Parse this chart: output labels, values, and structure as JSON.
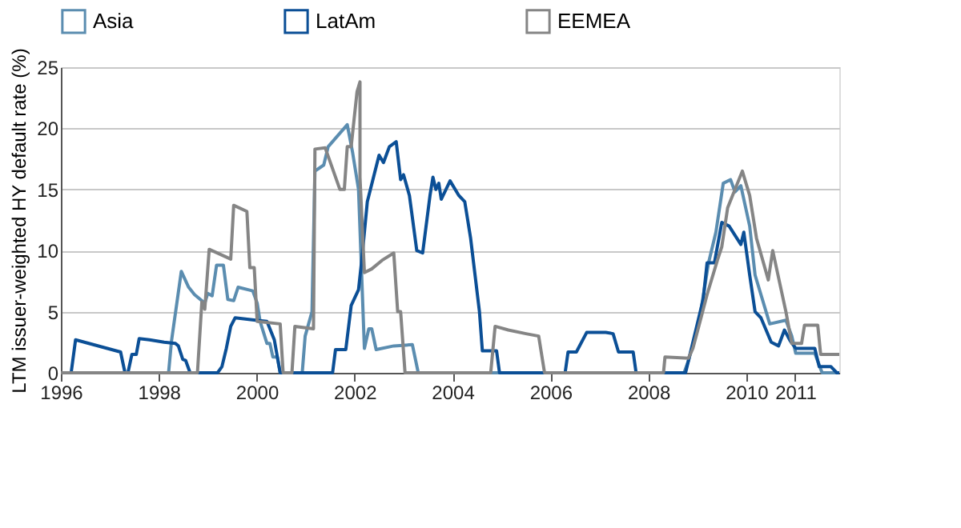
{
  "chart_data": {
    "type": "line",
    "ylabel": "LTM issuer-weighted HY default rate (%)",
    "xlim": [
      1996,
      2011.9
    ],
    "xticks": [
      1996,
      1998,
      2000,
      2002,
      2004,
      2006,
      2008,
      2010,
      2011
    ],
    "ylim": [
      0,
      25
    ],
    "yticks": [
      0,
      5,
      10,
      15,
      20,
      25
    ],
    "grid": "y",
    "legend": "top",
    "marker": "none",
    "line_style": "solid",
    "series": [
      {
        "name": "Asia",
        "color": "#5b8db0",
        "x": [
          1996,
          1998.2,
          1998.26,
          1998.46,
          1998.61,
          1998.73,
          1998.94,
          1999.0,
          1999.09,
          1999.18,
          1999.32,
          1999.41,
          1999.53,
          1999.62,
          1999.92,
          2000.01,
          2000.07,
          2000.21,
          2000.27,
          2000.33,
          2000.42,
          2000.48,
          2000.93,
          2000.99,
          2001.13,
          2001.19,
          2001.37,
          2001.46,
          2001.85,
          2001.96,
          2002.08,
          2002.2,
          2002.29,
          2002.35,
          2002.44,
          2002.8,
          2003.18,
          2003.3,
          2008.73,
          2008.82,
          2009.03,
          2009.23,
          2009.38,
          2009.53,
          2009.68,
          2009.77,
          2009.89,
          2010.07,
          2010.18,
          2010.48,
          2010.81,
          2010.93,
          2011.01,
          2011.4,
          2011.55,
          2011.9
        ],
        "values": [
          0,
          0,
          2.6,
          8.3,
          7,
          6.4,
          5.7,
          6.5,
          6.3,
          8.8,
          8.8,
          6,
          5.9,
          7,
          6.7,
          5.7,
          4.2,
          2.4,
          2.4,
          1.3,
          1.3,
          0,
          0,
          3,
          5,
          16.5,
          17,
          18.5,
          20.3,
          18,
          15,
          2,
          3.6,
          3.6,
          1.9,
          2.2,
          2.3,
          0,
          0,
          1,
          4,
          9,
          11.5,
          15.5,
          15.8,
          14.8,
          15.3,
          12,
          8,
          4,
          4.3,
          3,
          1.6,
          1.6,
          0,
          0
        ]
      },
      {
        "name": "LatAm",
        "color": "#0b4f96",
        "x": [
          1996,
          1996.21,
          1996.3,
          1997.22,
          1997.31,
          1997.37,
          1997.45,
          1997.54,
          1997.6,
          1997.81,
          1998.11,
          1998.34,
          1998.4,
          1998.49,
          1998.55,
          1998.64,
          1999.2,
          1999.29,
          1999.38,
          1999.47,
          1999.56,
          1999.98,
          2000.21,
          2000.36,
          2000.48,
          2001.55,
          2001.61,
          2001.82,
          2001.93,
          2002.08,
          2002.14,
          2002.26,
          2002.5,
          2002.59,
          2002.71,
          2002.85,
          2002.94,
          2003.0,
          2003.12,
          2003.27,
          2003.39,
          2003.54,
          2003.6,
          2003.66,
          2003.72,
          2003.77,
          2003.95,
          2004.13,
          2004.25,
          2004.37,
          2004.55,
          2004.61,
          2004.9,
          2004.96,
          2006.3,
          2006.36,
          2006.53,
          2006.74,
          2007.13,
          2007.28,
          2007.39,
          2007.69,
          2007.75,
          2008.76,
          2008.88,
          2009.12,
          2009.2,
          2009.35,
          2009.5,
          2009.65,
          2009.89,
          2009.95,
          2010.07,
          2010.18,
          2010.3,
          2010.51,
          2010.66,
          2010.78,
          2010.9,
          2011.01,
          2011.4,
          2011.49,
          2011.73,
          2011.85,
          2011.9
        ],
        "values": [
          0,
          0,
          2.7,
          1.7,
          0,
          0,
          1.5,
          1.5,
          2.8,
          2.7,
          2.5,
          2.4,
          2.2,
          1.1,
          1,
          0,
          0,
          0.5,
          2,
          3.8,
          4.5,
          4.3,
          4.2,
          2.7,
          0,
          0,
          1.9,
          1.9,
          5.5,
          6.8,
          9,
          14,
          17.8,
          17.2,
          18.5,
          18.9,
          15.8,
          16.2,
          14.5,
          10,
          9.8,
          14.5,
          16,
          15,
          15.5,
          14.2,
          15.7,
          14.5,
          14,
          11,
          5,
          1.8,
          1.8,
          0,
          0,
          1.7,
          1.7,
          3.3,
          3.3,
          3.2,
          1.7,
          1.7,
          0,
          0,
          2,
          6,
          9,
          9,
          12.3,
          12,
          10.5,
          11.5,
          8,
          5,
          4.5,
          2.5,
          2.2,
          3.5,
          2.6,
          2,
          2,
          0.5,
          0.5,
          0,
          0
        ]
      },
      {
        "name": "EEMEA",
        "color": "#858585",
        "x": [
          1996,
          1998.79,
          1998.88,
          1998.94,
          1999.03,
          1999.47,
          1999.53,
          1999.8,
          1999.86,
          1999.95,
          2000.01,
          2000.48,
          2000.54,
          2000.72,
          2000.78,
          2001.16,
          2001.19,
          2001.4,
          2001.7,
          2001.79,
          2001.85,
          2001.93,
          2002.05,
          2002.11,
          2002.11,
          2002.2,
          2002.35,
          2002.56,
          2002.8,
          2002.88,
          2002.94,
          2003.03,
          2004.78,
          2004.87,
          2005.14,
          2005.5,
          2005.76,
          2005.88,
          2008.31,
          2008.34,
          2008.82,
          2008.91,
          2009.03,
          2009.2,
          2009.41,
          2009.5,
          2009.62,
          2009.92,
          2010.07,
          2010.21,
          2010.45,
          2010.54,
          2010.81,
          2010.93,
          2011.13,
          2011.19,
          2011.46,
          2011.52,
          2011.9
        ],
        "values": [
          0,
          0,
          5.8,
          5.2,
          10.1,
          9.3,
          13.7,
          13.2,
          8.6,
          8.6,
          4.2,
          4,
          0,
          0,
          3.8,
          3.6,
          18.3,
          18.4,
          15,
          15,
          18.5,
          18.5,
          23,
          23.8,
          16,
          8.2,
          8.5,
          9.2,
          9.8,
          5,
          5,
          0,
          0,
          3.8,
          3.5,
          3.2,
          3,
          0,
          0,
          1.3,
          1.2,
          2,
          3.8,
          6.4,
          9.2,
          10.3,
          13.5,
          16.5,
          14.5,
          11,
          7.6,
          10,
          5,
          2.4,
          2.4,
          3.9,
          3.9,
          1.5,
          1.5
        ]
      }
    ]
  }
}
